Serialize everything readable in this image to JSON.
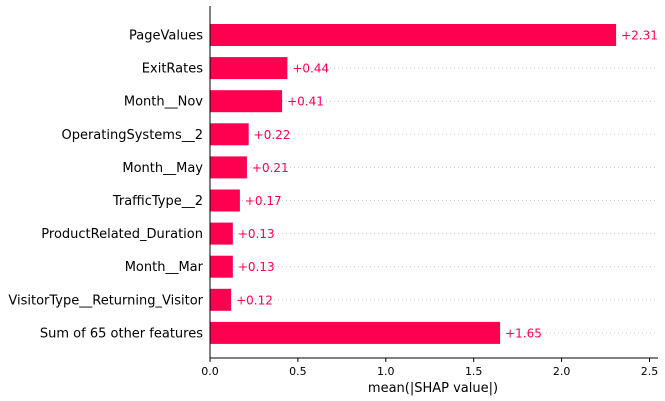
{
  "chart_data": {
    "type": "bar",
    "orientation": "horizontal",
    "categories": [
      "PageValues",
      "ExitRates",
      "Month__Nov",
      "OperatingSystems__2",
      "Month__May",
      "TrafficType__2",
      "ProductRelated_Duration",
      "Month__Mar",
      "VisitorType__Returning_Visitor",
      "Sum of 65 other features"
    ],
    "values": [
      2.31,
      0.44,
      0.41,
      0.22,
      0.21,
      0.17,
      0.13,
      0.13,
      0.12,
      1.65
    ],
    "value_labels": [
      "+2.31",
      "+0.44",
      "+0.41",
      "+0.22",
      "+0.21",
      "+0.17",
      "+0.13",
      "+0.13",
      "+0.12",
      "+1.65"
    ],
    "xlabel": "mean(|SHAP value|)",
    "ylabel": "",
    "title": "",
    "xlim": [
      0,
      2.55
    ],
    "xticks": [
      "0.0",
      "0.5",
      "1.0",
      "1.5",
      "2.0",
      "2.5"
    ],
    "grid": "dotted horizontal row guides",
    "bar_color": "#ff0051",
    "label_color": "#ff0051"
  }
}
